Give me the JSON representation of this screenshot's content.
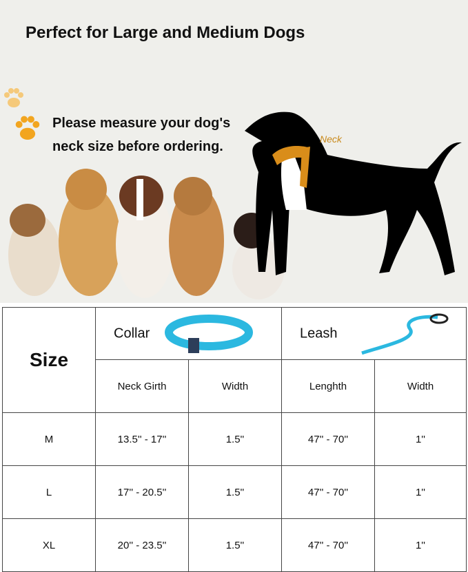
{
  "title": "Perfect for Large and Medium Dogs",
  "instruction_line1": "Please measure your dog's",
  "instruction_line2": "neck size before ordering.",
  "neck_label": "Neck",
  "table": {
    "size_header": "Size",
    "collar_header": "Collar",
    "leash_header": "Leash",
    "sub_headers": [
      "Neck Girth",
      "Width",
      "Lenghth",
      "Width"
    ],
    "rows": [
      {
        "size": "M",
        "neck_girth": "13.5'' - 17''",
        "collar_width": "1.5''",
        "length": "47'' - 70''",
        "leash_width": "1''"
      },
      {
        "size": "L",
        "neck_girth": "17'' - 20.5''",
        "collar_width": "1.5''",
        "length": "47'' - 70''",
        "leash_width": "1''"
      },
      {
        "size": "XL",
        "neck_girth": "20'' - 23.5''",
        "collar_width": "1.5''",
        "length": "47'' - 70''",
        "leash_width": "1''"
      }
    ]
  },
  "colors": {
    "paw": "#f2a51f",
    "collar": "#2bb8e0",
    "tape": "#d98d1a"
  }
}
